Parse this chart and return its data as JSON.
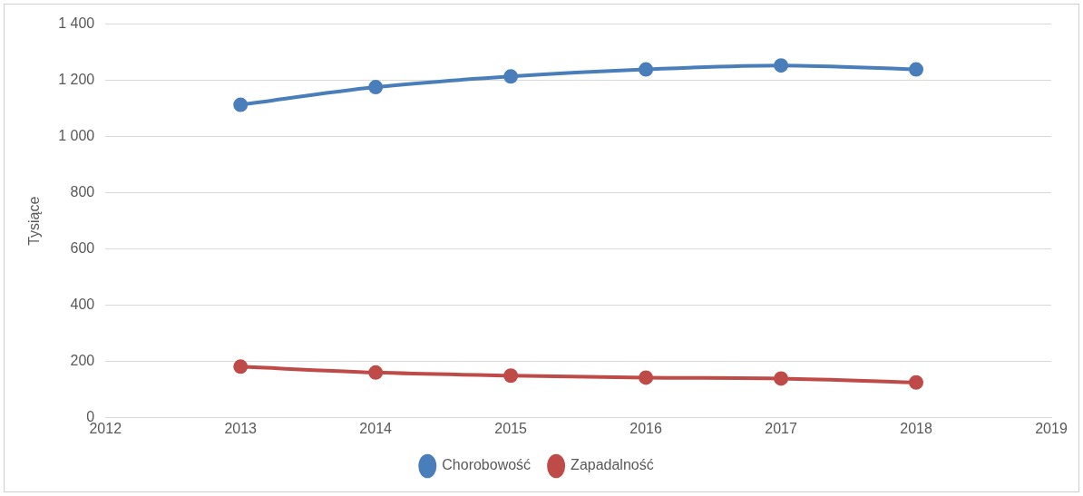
{
  "chart_data": {
    "type": "line",
    "ylabel": "Tysiące",
    "x": [
      2013,
      2014,
      2015,
      2016,
      2017,
      2018
    ],
    "series": [
      {
        "name": "Chorobowość",
        "color": "#4a7ebb",
        "values": [
          1113,
          1176,
          1214,
          1239,
          1253,
          1239
        ]
      },
      {
        "name": "Zapadalność",
        "color": "#be4b48",
        "values": [
          182,
          161,
          150,
          143,
          140,
          126
        ]
      }
    ],
    "xlim": [
      2012,
      2019
    ],
    "xticks": [
      2012,
      2013,
      2014,
      2015,
      2016,
      2017,
      2018,
      2019
    ],
    "ylim": [
      0,
      1400
    ],
    "yticks": [
      {
        "value": 0,
        "label": "0"
      },
      {
        "value": 200,
        "label": "200"
      },
      {
        "value": 400,
        "label": "400"
      },
      {
        "value": 600,
        "label": "600"
      },
      {
        "value": 800,
        "label": "800"
      },
      {
        "value": 1000,
        "label": "1 000"
      },
      {
        "value": 1200,
        "label": "1 200"
      },
      {
        "value": 1400,
        "label": "1 400"
      }
    ],
    "grid": "y",
    "legend": "bottom",
    "marker": "circle",
    "line_style": "solid"
  }
}
